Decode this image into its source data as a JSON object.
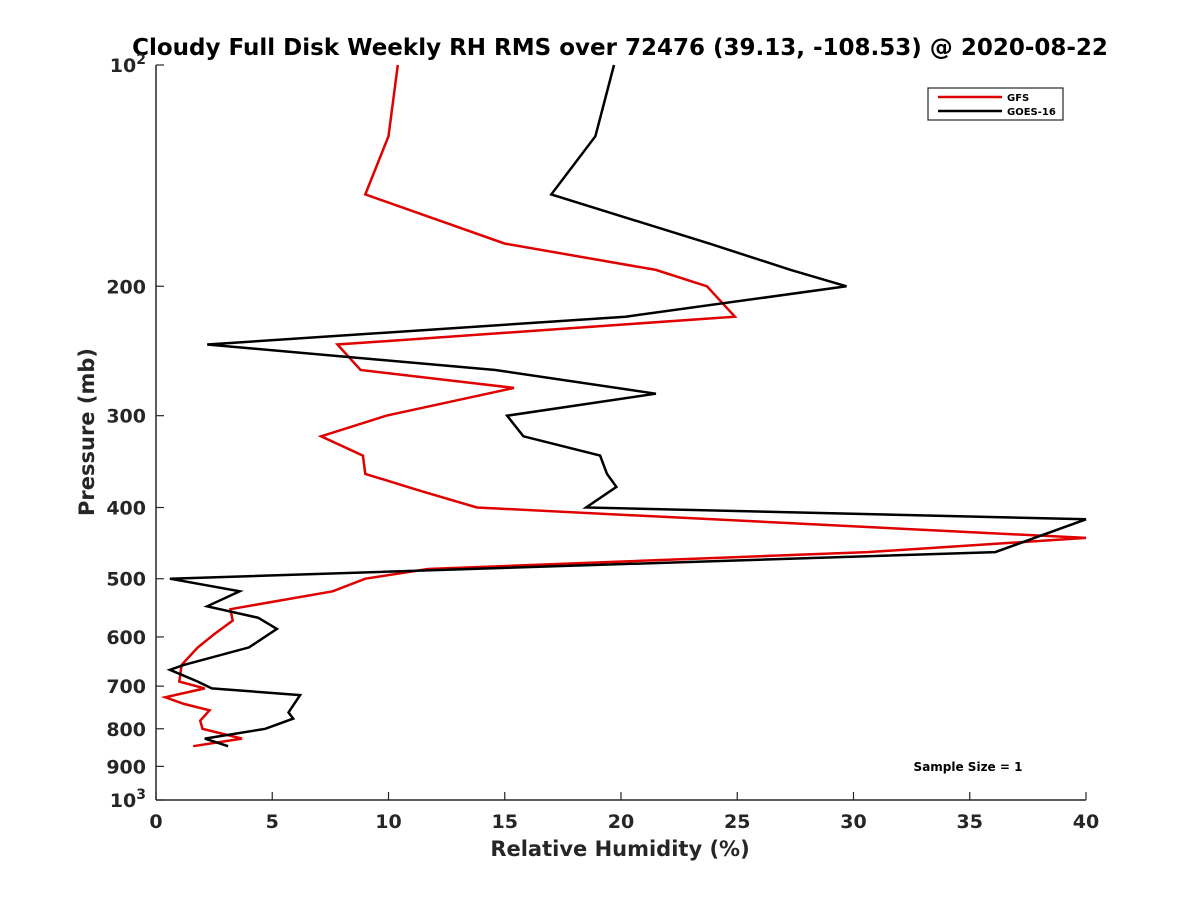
{
  "chart_data": {
    "type": "line",
    "title": "Cloudy Full Disk Weekly RH RMS over 72476 (39.13, -108.53) @ 2020-08-22",
    "xlabel": "Relative Humidity (%)",
    "ylabel": "Pressure (mb)",
    "xlim": [
      0,
      40
    ],
    "ylim": [
      100,
      1000
    ],
    "y_scale": "log",
    "y_reversed": true,
    "x_ticks": [
      "0",
      "5",
      "10",
      "15",
      "20",
      "25",
      "30",
      "35",
      "40"
    ],
    "y_ticks": [
      {
        "value": 100,
        "base": "10",
        "exp": "2"
      },
      {
        "value": 200,
        "label": "200"
      },
      {
        "value": 300,
        "label": "300"
      },
      {
        "value": 400,
        "label": "400"
      },
      {
        "value": 500,
        "label": "500"
      },
      {
        "value": 600,
        "label": "600"
      },
      {
        "value": 700,
        "label": "700"
      },
      {
        "value": 800,
        "label": "800"
      },
      {
        "value": 900,
        "label": "900"
      },
      {
        "value": 1000,
        "base": "10",
        "exp": "3"
      }
    ],
    "legend_position": "top-right",
    "grid": false,
    "series": [
      {
        "name": "GFS",
        "color": "#e00000",
        "points": [
          [
            10.4,
            100
          ],
          [
            10.0,
            125
          ],
          [
            9.0,
            150
          ],
          [
            15.0,
            175
          ],
          [
            21.5,
            190
          ],
          [
            23.7,
            200
          ],
          [
            24.9,
            220
          ],
          [
            7.8,
            240
          ],
          [
            8.8,
            260
          ],
          [
            15.4,
            275
          ],
          [
            9.9,
            300
          ],
          [
            7.1,
            320
          ],
          [
            8.9,
            340
          ],
          [
            9.0,
            360
          ],
          [
            11.4,
            380
          ],
          [
            13.8,
            400
          ],
          [
            40,
            440
          ],
          [
            30.6,
            460
          ],
          [
            11.7,
            485
          ],
          [
            9.0,
            500
          ],
          [
            7.6,
            520
          ],
          [
            3.2,
            550
          ],
          [
            3.3,
            570
          ],
          [
            2.5,
            595
          ],
          [
            1.8,
            620
          ],
          [
            1.1,
            655
          ],
          [
            1.0,
            690
          ],
          [
            2.1,
            705
          ],
          [
            0.4,
            725
          ],
          [
            1.2,
            740
          ],
          [
            2.3,
            755
          ],
          [
            1.9,
            780
          ],
          [
            2.0,
            800
          ],
          [
            3.7,
            825
          ],
          [
            1.6,
            845
          ]
        ]
      },
      {
        "name": "GOES-16",
        "color": "#000000",
        "points": [
          [
            19.7,
            100
          ],
          [
            18.9,
            125
          ],
          [
            17.0,
            150
          ],
          [
            23.8,
            175
          ],
          [
            27.3,
            190
          ],
          [
            29.7,
            200
          ],
          [
            20.2,
            220
          ],
          [
            2.2,
            240
          ],
          [
            14.6,
            260
          ],
          [
            21.5,
            280
          ],
          [
            15.1,
            300
          ],
          [
            15.8,
            320
          ],
          [
            19.1,
            340
          ],
          [
            19.4,
            360
          ],
          [
            19.8,
            375
          ],
          [
            18.5,
            400
          ],
          [
            40,
            415
          ],
          [
            36.1,
            460
          ],
          [
            0.6,
            500
          ],
          [
            3.6,
            520
          ],
          [
            2.2,
            545
          ],
          [
            4.4,
            565
          ],
          [
            5.2,
            585
          ],
          [
            4.0,
            620
          ],
          [
            1.2,
            655
          ],
          [
            0.6,
            665
          ],
          [
            1.8,
            690
          ],
          [
            2.4,
            705
          ],
          [
            6.2,
            720
          ],
          [
            5.7,
            760
          ],
          [
            5.9,
            775
          ],
          [
            4.7,
            800
          ],
          [
            2.1,
            825
          ],
          [
            3.1,
            845
          ]
        ]
      }
    ],
    "annotations": [
      "Sample Size = 1"
    ]
  }
}
